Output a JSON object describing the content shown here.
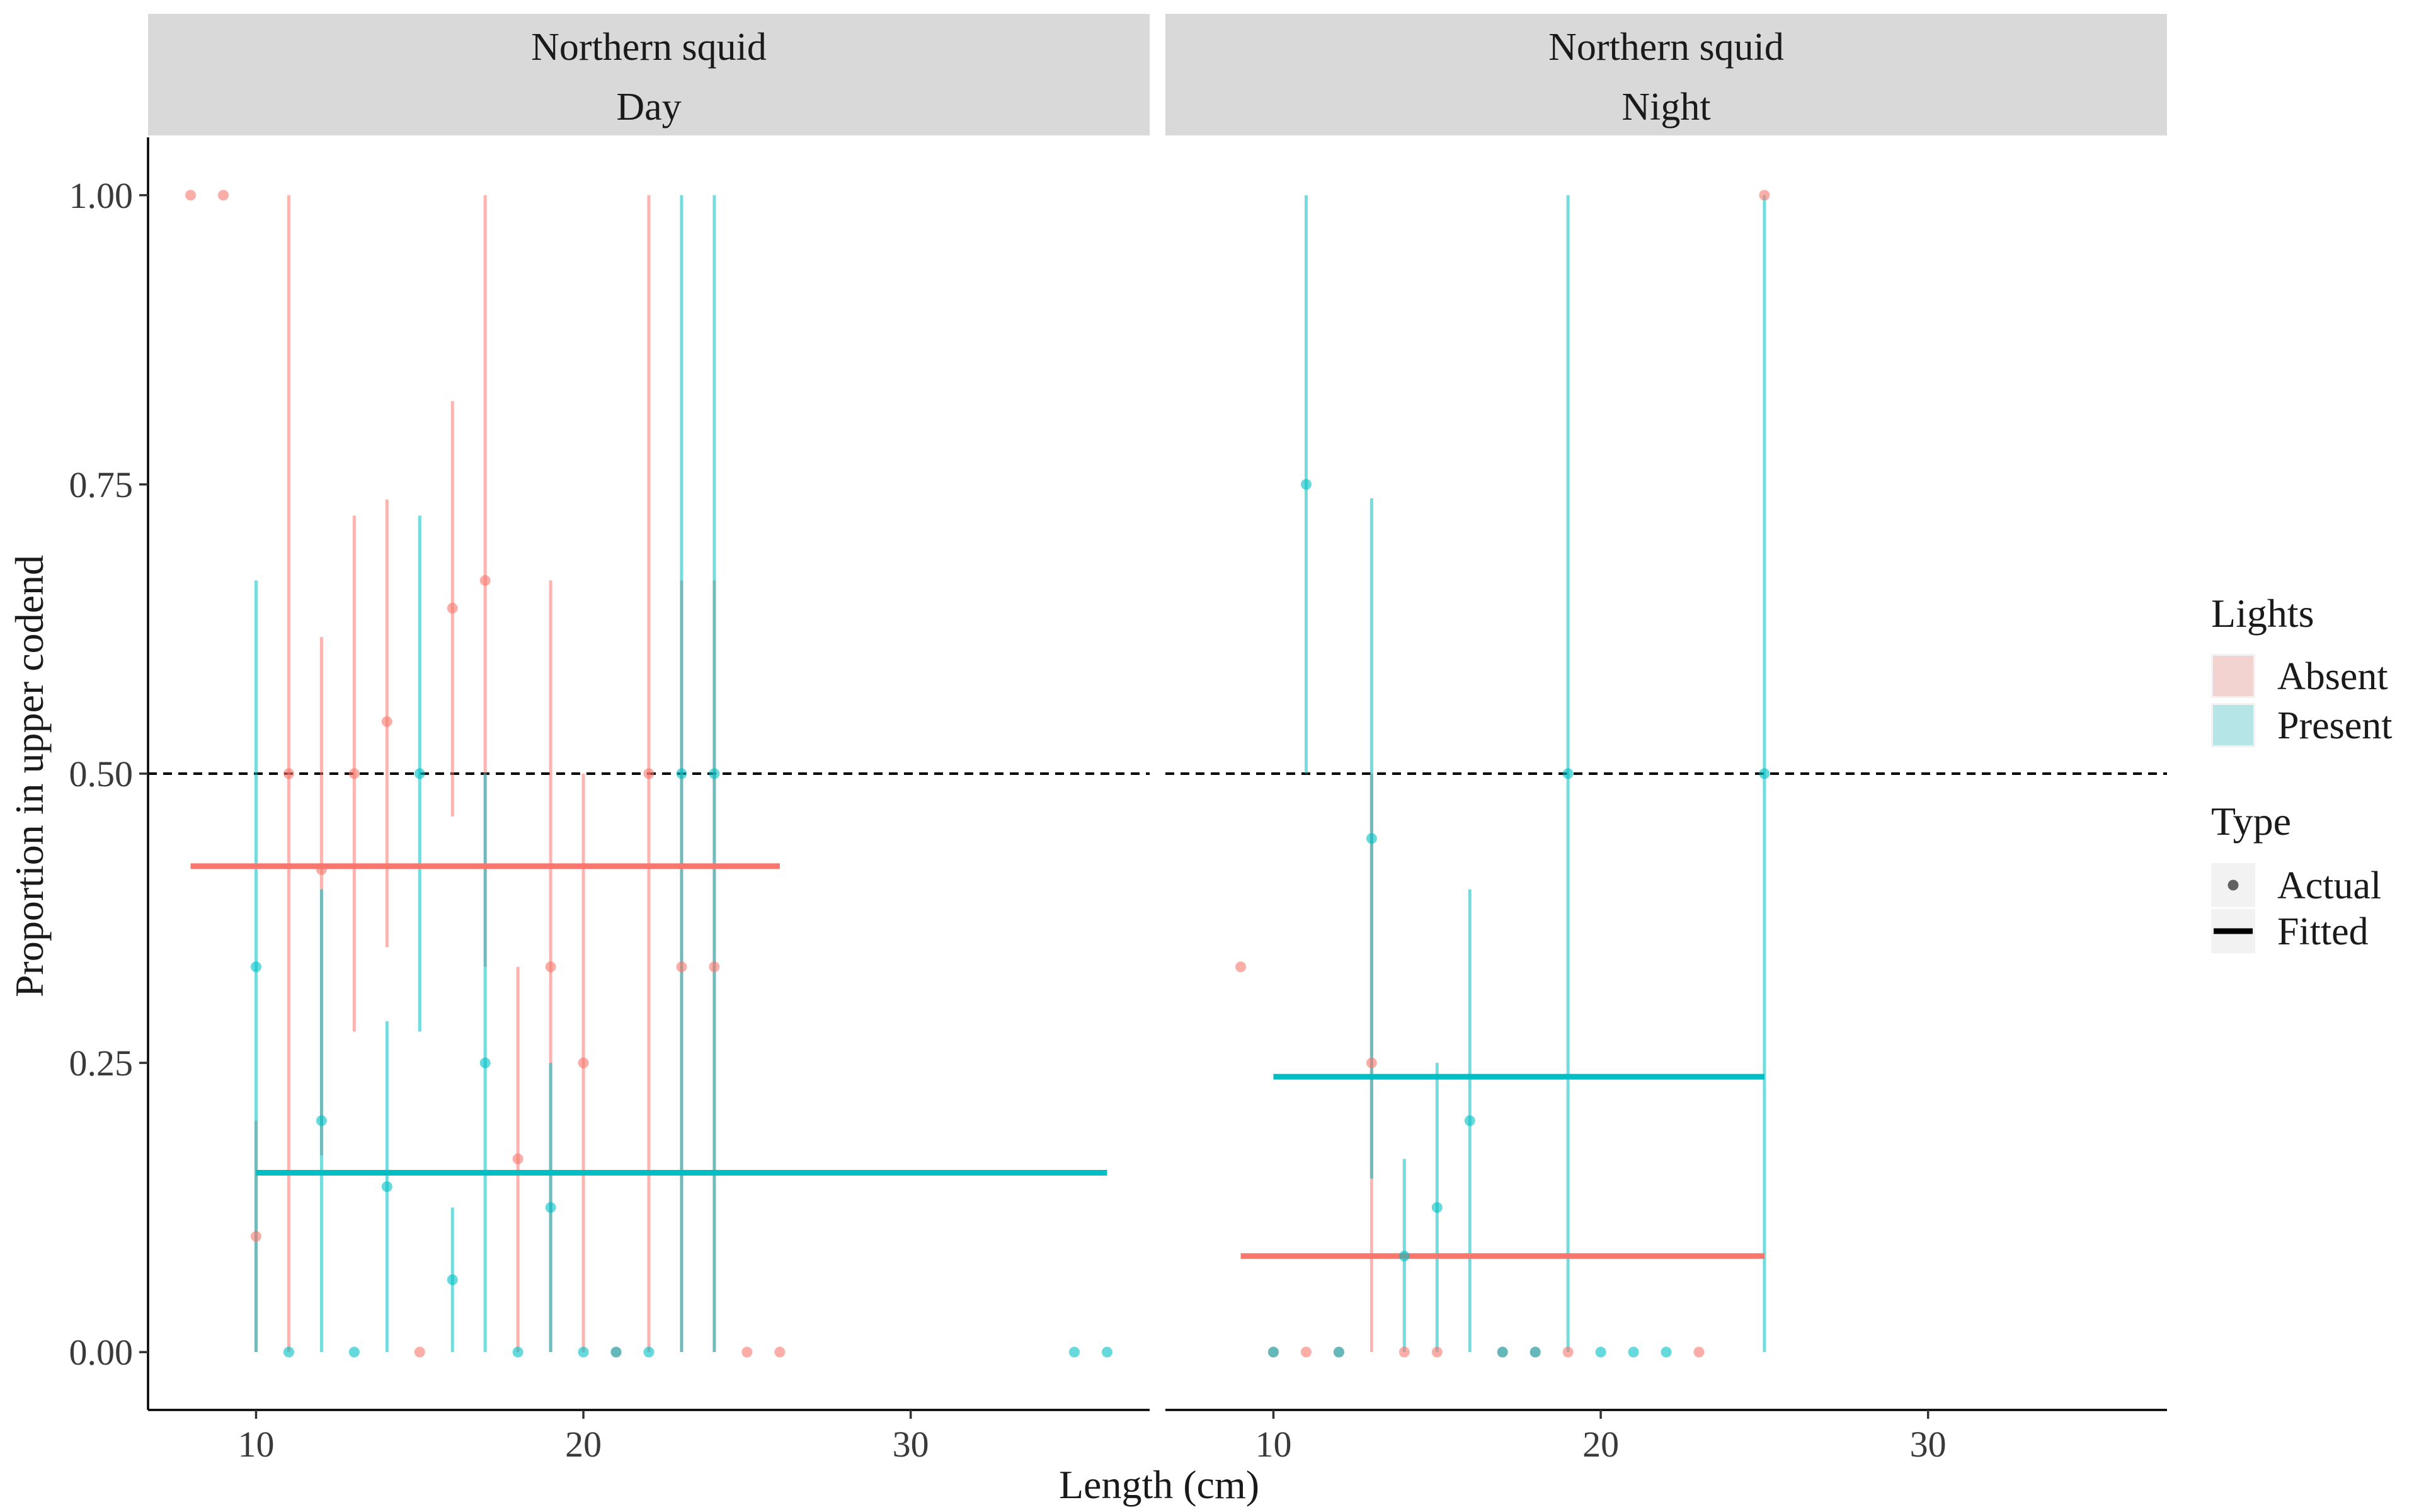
{
  "chart_data": {
    "type": "scatter",
    "xlabel": "Length (cm)",
    "ylabel": "Proportion in upper codend",
    "xlim": [
      6.7,
      37.3
    ],
    "ylim": [
      -0.05,
      1.05
    ],
    "x_ticks": [
      10,
      20,
      30
    ],
    "y_ticks": [
      0,
      0.25,
      0.5,
      0.75,
      1.0
    ],
    "y_tick_labels": [
      "0.00",
      "0.25",
      "0.50",
      "0.75",
      "1.00"
    ],
    "reference_line": {
      "y": 0.5,
      "style": "dashed"
    },
    "colors": {
      "Absent": "#F8766D",
      "Present": "#00BFC4"
    },
    "legend": {
      "placement": "right",
      "lights_title": "Lights",
      "lights_items": [
        "Absent",
        "Present"
      ],
      "type_title": "Type",
      "type_items": [
        "Actual",
        "Fitted"
      ]
    },
    "panels": [
      {
        "strip_line1": "Northern squid",
        "strip_line2": "Day",
        "fitted": [
          {
            "lights": "Absent",
            "x_start": 8,
            "x_end": 26,
            "y": 0.42
          },
          {
            "lights": "Present",
            "x_start": 10,
            "x_end": 36,
            "y": 0.155
          }
        ],
        "actual": [
          {
            "lights": "Absent",
            "x": 8,
            "y": 1.0
          },
          {
            "lights": "Absent",
            "x": 9,
            "y": 1.0
          },
          {
            "lights": "Absent",
            "x": 10,
            "y": 0.1,
            "lo": 0.0,
            "hi": 0.2
          },
          {
            "lights": "Absent",
            "x": 11,
            "y": 0.5,
            "lo": 0.0,
            "hi": 1.0
          },
          {
            "lights": "Absent",
            "x": 12,
            "y": 0.417,
            "lo": 0.17,
            "hi": 0.618
          },
          {
            "lights": "Absent",
            "x": 13,
            "y": 0.5,
            "lo": 0.277,
            "hi": 0.723
          },
          {
            "lights": "Absent",
            "x": 14,
            "y": 0.545,
            "lo": 0.35,
            "hi": 0.737
          },
          {
            "lights": "Absent",
            "x": 15,
            "y": 0.0
          },
          {
            "lights": "Absent",
            "x": 16,
            "y": 0.643,
            "lo": 0.463,
            "hi": 0.822
          },
          {
            "lights": "Absent",
            "x": 17,
            "y": 0.667,
            "lo": 0.333,
            "hi": 1.0
          },
          {
            "lights": "Absent",
            "x": 18,
            "y": 0.167,
            "lo": 0.0,
            "hi": 0.333
          },
          {
            "lights": "Absent",
            "x": 19,
            "y": 0.333,
            "lo": 0.0,
            "hi": 0.667
          },
          {
            "lights": "Absent",
            "x": 20,
            "y": 0.25,
            "lo": 0.0,
            "hi": 0.5
          },
          {
            "lights": "Absent",
            "x": 21,
            "y": 0.0
          },
          {
            "lights": "Absent",
            "x": 22,
            "y": 0.5,
            "lo": 0.0,
            "hi": 1.0
          },
          {
            "lights": "Absent",
            "x": 23,
            "y": 0.333,
            "lo": 0.0,
            "hi": 0.667
          },
          {
            "lights": "Absent",
            "x": 24,
            "y": 0.333,
            "lo": 0.0,
            "hi": 0.667
          },
          {
            "lights": "Absent",
            "x": 25,
            "y": 0.0
          },
          {
            "lights": "Absent",
            "x": 26,
            "y": 0.0
          },
          {
            "lights": "Present",
            "x": 10,
            "y": 0.333,
            "lo": 0.0,
            "hi": 0.667
          },
          {
            "lights": "Present",
            "x": 11,
            "y": 0.0
          },
          {
            "lights": "Present",
            "x": 12,
            "y": 0.2,
            "lo": 0.0,
            "hi": 0.4
          },
          {
            "lights": "Present",
            "x": 13,
            "y": 0.0
          },
          {
            "lights": "Present",
            "x": 14,
            "y": 0.143,
            "lo": 0.0,
            "hi": 0.286
          },
          {
            "lights": "Present",
            "x": 15,
            "y": 0.5,
            "lo": 0.277,
            "hi": 0.723
          },
          {
            "lights": "Present",
            "x": 16,
            "y": 0.0625,
            "lo": 0.0,
            "hi": 0.125
          },
          {
            "lights": "Present",
            "x": 17,
            "y": 0.25,
            "lo": 0.0,
            "hi": 0.5
          },
          {
            "lights": "Present",
            "x": 18,
            "y": 0.0
          },
          {
            "lights": "Present",
            "x": 19,
            "y": 0.125,
            "lo": 0.0,
            "hi": 0.25
          },
          {
            "lights": "Present",
            "x": 20,
            "y": 0.0
          },
          {
            "lights": "Present",
            "x": 21,
            "y": 0.0
          },
          {
            "lights": "Present",
            "x": 22,
            "y": 0.0
          },
          {
            "lights": "Present",
            "x": 23,
            "y": 0.5,
            "lo": 0.0,
            "hi": 1.0
          },
          {
            "lights": "Present",
            "x": 24,
            "y": 0.5,
            "lo": 0.0,
            "hi": 1.0
          },
          {
            "lights": "Present",
            "x": 35,
            "y": 0.0
          },
          {
            "lights": "Present",
            "x": 36,
            "y": 0.0
          }
        ]
      },
      {
        "strip_line1": "Northern squid",
        "strip_line2": "Night",
        "fitted": [
          {
            "lights": "Absent",
            "x_start": 9,
            "x_end": 25,
            "y": 0.083
          },
          {
            "lights": "Present",
            "x_start": 10,
            "x_end": 25,
            "y": 0.238
          }
        ],
        "actual": [
          {
            "lights": "Absent",
            "x": 9,
            "y": 0.333
          },
          {
            "lights": "Absent",
            "x": 10,
            "y": 0.0
          },
          {
            "lights": "Absent",
            "x": 11,
            "y": 0.0
          },
          {
            "lights": "Absent",
            "x": 12,
            "y": 0.0
          },
          {
            "lights": "Absent",
            "x": 13,
            "y": 0.25,
            "lo": 0.0,
            "hi": 0.5
          },
          {
            "lights": "Absent",
            "x": 14,
            "y": 0.0
          },
          {
            "lights": "Absent",
            "x": 15,
            "y": 0.0
          },
          {
            "lights": "Absent",
            "x": 17,
            "y": 0.0
          },
          {
            "lights": "Absent",
            "x": 18,
            "y": 0.0
          },
          {
            "lights": "Absent",
            "x": 19,
            "y": 0.0
          },
          {
            "lights": "Absent",
            "x": 23,
            "y": 0.0
          },
          {
            "lights": "Absent",
            "x": 25,
            "y": 1.0
          },
          {
            "lights": "Present",
            "x": 10,
            "y": 0.0
          },
          {
            "lights": "Present",
            "x": 11,
            "y": 0.75,
            "lo": 0.5,
            "hi": 1.0
          },
          {
            "lights": "Present",
            "x": 12,
            "y": 0.0
          },
          {
            "lights": "Present",
            "x": 13,
            "y": 0.444,
            "lo": 0.15,
            "hi": 0.738
          },
          {
            "lights": "Present",
            "x": 14,
            "y": 0.083,
            "lo": 0.0,
            "hi": 0.167
          },
          {
            "lights": "Present",
            "x": 15,
            "y": 0.125,
            "lo": 0.0,
            "hi": 0.25
          },
          {
            "lights": "Present",
            "x": 16,
            "y": 0.2,
            "lo": 0.0,
            "hi": 0.4
          },
          {
            "lights": "Present",
            "x": 17,
            "y": 0.0
          },
          {
            "lights": "Present",
            "x": 18,
            "y": 0.0
          },
          {
            "lights": "Present",
            "x": 19,
            "y": 0.5,
            "lo": 0.0,
            "hi": 1.0
          },
          {
            "lights": "Present",
            "x": 20,
            "y": 0.0
          },
          {
            "lights": "Present",
            "x": 21,
            "y": 0.0
          },
          {
            "lights": "Present",
            "x": 22,
            "y": 0.0
          },
          {
            "lights": "Present",
            "x": 25,
            "y": 0.5,
            "lo": 0.0,
            "hi": 1.0
          }
        ]
      }
    ]
  }
}
